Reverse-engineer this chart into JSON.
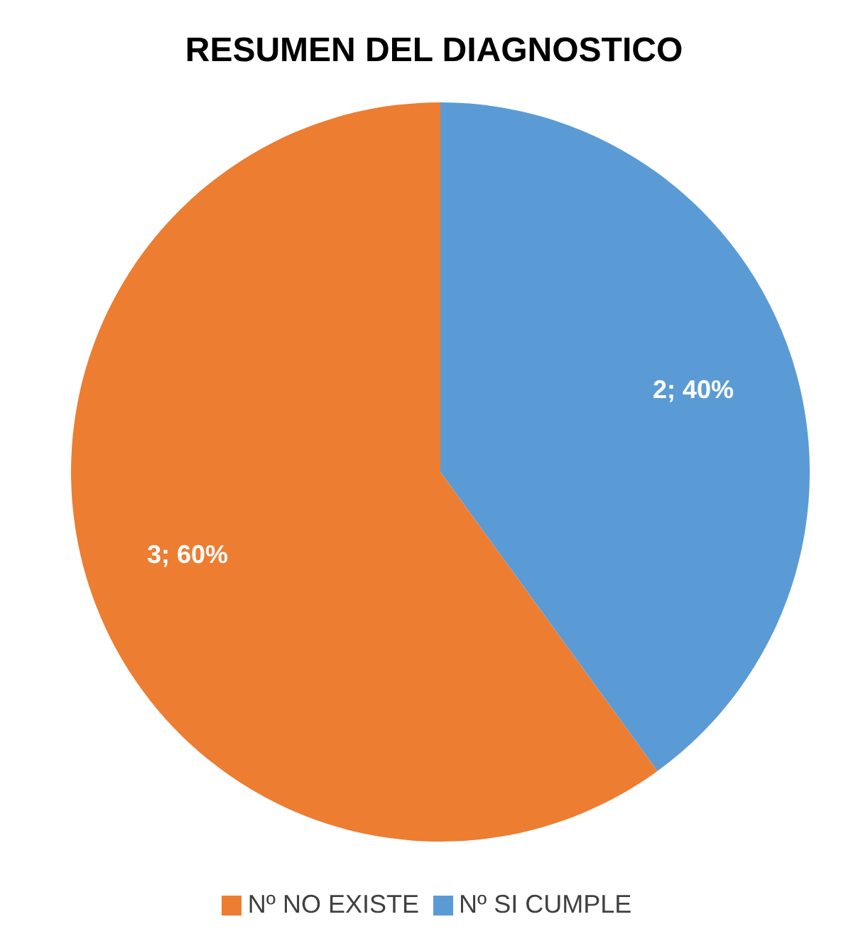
{
  "chart_data": {
    "type": "pie",
    "title": "RESUMEN DEL DIAGNOSTICO",
    "categories": [
      "Nº SI CUMPLE",
      "Nº NO EXISTE"
    ],
    "values": [
      2,
      3
    ],
    "colors": [
      "#5b9bd5",
      "#ed7d31"
    ],
    "value_labels": [
      "2; 40%",
      "3; 60%"
    ],
    "legend": "bottom"
  }
}
